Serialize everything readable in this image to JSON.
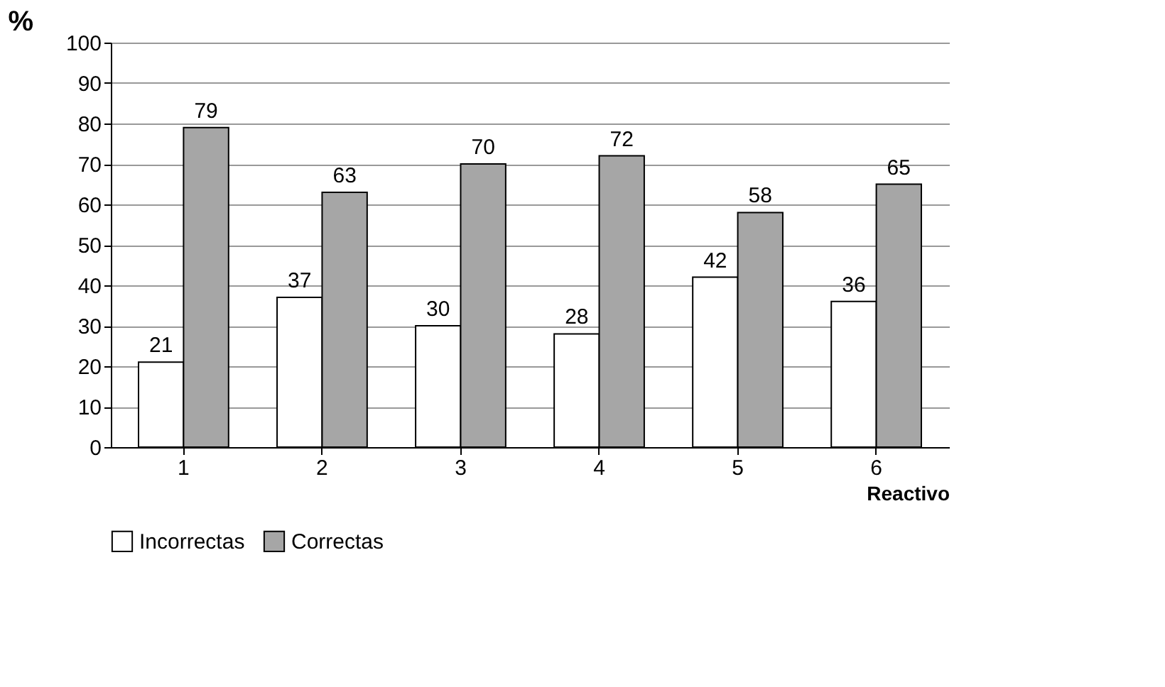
{
  "chart_data": {
    "type": "bar",
    "xlabel": "Reactivo",
    "ylabel": "%",
    "categories": [
      "1",
      "2",
      "3",
      "4",
      "5",
      "6"
    ],
    "series": [
      {
        "name": "Incorrectas",
        "color": "#ffffff",
        "values": [
          21,
          37,
          30,
          28,
          42,
          36
        ]
      },
      {
        "name": "Correctas",
        "color": "#a6a6a6",
        "values": [
          79,
          63,
          70,
          72,
          58,
          65
        ]
      }
    ],
    "ylim": [
      0,
      100
    ],
    "yticks": [
      0,
      10,
      20,
      30,
      40,
      50,
      60,
      70,
      80,
      90,
      100
    ],
    "grid": "y",
    "legend": "bottom",
    "data_labels": true
  }
}
